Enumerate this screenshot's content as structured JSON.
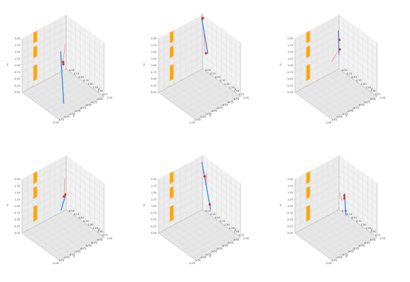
{
  "figure": {
    "colors": {
      "pane_back": "#f2f2f2",
      "pane_side": "#ebebeb",
      "pane_floor": "#e6e6e6",
      "grid": "#d6d6d6",
      "edge": "#aaaaaa",
      "obstacle": "#ffa500",
      "rod": "#4a90e2",
      "trail": "#ff8c8c",
      "marker": "#d62728"
    },
    "axis_labels": {
      "x": "x",
      "y": "y",
      "z": "z"
    },
    "tick_labels": {
      "z": [
        "0.00",
        "0.25",
        "0.50",
        "0.75",
        "1.00",
        "1.25",
        "1.50",
        "1.75",
        "2.00"
      ],
      "x": [
        "-2.00",
        "-1.75",
        "-1.50",
        "-1.25",
        "-1.00",
        "-0.75",
        "-0.50",
        "-0.25",
        "0.00"
      ],
      "y": [
        "0.00",
        "0.25",
        "0.50",
        "0.75",
        "1.00",
        "1.25",
        "1.50",
        "1.75",
        "2.00"
      ]
    }
  },
  "chart_data": [
    {
      "type": "line3d",
      "xlim": [
        -2,
        0
      ],
      "ylim": [
        0,
        2
      ],
      "zlim": [
        0,
        2
      ],
      "obstacles": [
        {
          "z": [
            1.6,
            2.0
          ]
        },
        {
          "z": [
            1.05,
            1.45
          ]
        },
        {
          "z": [
            0.2,
            0.75
          ]
        }
      ],
      "rod": {
        "start": [
          -1.4,
          1.5,
          0.1
        ],
        "end": [
          -0.55,
          0.35,
          1.05
        ]
      },
      "trail": [
        [
          -0.4,
          0.4,
          1.3
        ],
        [
          -0.48,
          0.48,
          1.15
        ],
        [
          -0.55,
          0.5,
          0.95
        ],
        [
          -0.62,
          0.55,
          0.78
        ],
        [
          -0.64,
          0.58,
          0.7
        ]
      ],
      "markers": [
        [
          -0.58,
          0.52,
          0.78
        ],
        [
          -0.6,
          0.55,
          0.72
        ]
      ]
    },
    {
      "type": "line3d",
      "xlim": [
        -2,
        0
      ],
      "ylim": [
        0,
        2
      ],
      "zlim": [
        0,
        2
      ],
      "obstacles": [
        {
          "z": [
            1.6,
            2.0
          ]
        },
        {
          "z": [
            1.05,
            1.45
          ]
        },
        {
          "z": [
            0.2,
            0.75
          ]
        }
      ],
      "rod": {
        "start": [
          -0.8,
          1.2,
          1.55
        ],
        "end": [
          -0.3,
          0.3,
          2.2
        ]
      },
      "trail": [
        [
          -0.75,
          1.0,
          1.4
        ],
        [
          -0.55,
          0.7,
          2.1
        ],
        [
          -0.45,
          0.45,
          2.3
        ],
        [
          -0.2,
          0.2,
          2.25
        ],
        [
          -0.15,
          0.15,
          2.1
        ]
      ],
      "markers": [
        [
          -0.75,
          1.05,
          1.45
        ],
        [
          -0.2,
          0.25,
          2.1
        ]
      ]
    },
    {
      "type": "line3d",
      "xlim": [
        -2,
        0
      ],
      "ylim": [
        0,
        2
      ],
      "zlim": [
        0,
        2
      ],
      "obstacles": [
        {
          "z": [
            1.6,
            2.0
          ]
        },
        {
          "z": [
            1.05,
            1.45
          ]
        },
        {
          "z": [
            0.2,
            0.75
          ]
        }
      ],
      "rod": {
        "start": [
          -0.2,
          0.2,
          1.6
        ],
        "end": [
          0.0,
          0.0,
          0.55
        ]
      },
      "trail": [
        [
          -1.2,
          1.0,
          1.3
        ],
        [
          -0.8,
          0.75,
          1.25
        ],
        [
          -0.4,
          0.35,
          0.95
        ],
        [
          -0.05,
          0.1,
          0.8
        ]
      ],
      "markers": [
        [
          -0.15,
          0.2,
          1.25
        ],
        [
          -0.05,
          0.1,
          0.8
        ]
      ]
    },
    {
      "type": "line3d",
      "xlim": [
        -2,
        0
      ],
      "ylim": [
        0,
        2
      ],
      "zlim": [
        0,
        2
      ],
      "obstacles": [
        {
          "z": [
            1.6,
            2.0
          ]
        },
        {
          "z": [
            1.05,
            1.45
          ]
        },
        {
          "z": [
            0.2,
            0.75
          ]
        }
      ],
      "rod": {
        "start": [
          -1.6,
          1.6,
          1.5
        ],
        "end": [
          -0.2,
          0.2,
          0.75
        ]
      },
      "trail": [
        [
          -0.45,
          0.45,
          1.6
        ],
        [
          -0.55,
          0.55,
          1.3
        ],
        [
          -0.7,
          0.7,
          1.25
        ]
      ],
      "markers": [
        [
          -0.75,
          0.75,
          1.2
        ],
        [
          -0.25,
          0.25,
          0.8
        ]
      ]
    },
    {
      "type": "line3d",
      "xlim": [
        -2,
        0
      ],
      "ylim": [
        0,
        2
      ],
      "zlim": [
        0,
        2
      ],
      "obstacles": [
        {
          "z": [
            1.6,
            2.0
          ]
        },
        {
          "z": [
            1.05,
            1.45
          ]
        },
        {
          "z": [
            0.2,
            0.75
          ]
        }
      ],
      "rod": {
        "start": [
          -0.5,
          1.0,
          0.75
        ],
        "end": [
          -0.2,
          0.2,
          1.95
        ]
      },
      "trail": [
        [
          -0.55,
          0.85,
          1.6
        ],
        [
          -0.3,
          0.55,
          1.75
        ],
        [
          -0.25,
          0.45,
          1.55
        ],
        [
          -0.35,
          0.55,
          1.4
        ]
      ],
      "markers": [
        [
          -0.45,
          0.9,
          0.85
        ],
        [
          -0.25,
          0.4,
          1.55
        ]
      ]
    },
    {
      "type": "line3d",
      "xlim": [
        -2,
        0
      ],
      "ylim": [
        0,
        2
      ],
      "zlim": [
        0,
        2
      ],
      "obstacles": [
        {
          "z": [
            1.6,
            2.0
          ]
        },
        {
          "z": [
            1.05,
            1.45
          ]
        },
        {
          "z": [
            0.2,
            0.75
          ]
        }
      ],
      "rod": {
        "start": [
          -0.55,
          1.0,
          0.55
        ],
        "end": [
          -0.35,
          0.7,
          1.1
        ]
      },
      "trail": [
        [
          -0.9,
          1.1,
          1.6
        ],
        [
          -0.75,
          0.95,
          1.3
        ],
        [
          -0.6,
          0.85,
          1.05
        ],
        [
          -0.45,
          0.75,
          0.95
        ]
      ],
      "markers": [
        [
          -0.4,
          0.75,
          0.98
        ],
        [
          -0.38,
          0.72,
          1.05
        ]
      ]
    }
  ]
}
